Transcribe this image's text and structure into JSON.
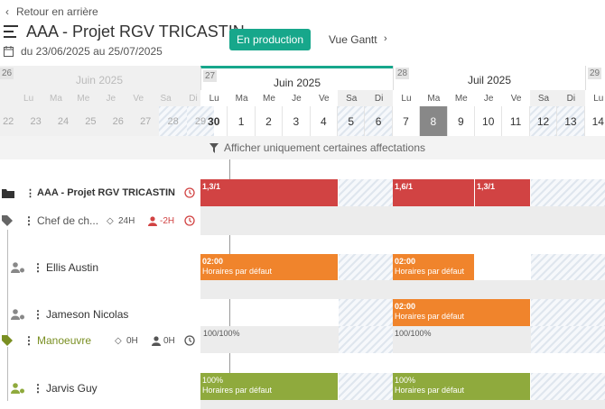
{
  "header": {
    "back_label": "Retour en arrière",
    "project_title": "AAA - Projet RGV TRICASTIN",
    "status_badge": "En production",
    "view_link": "Vue Gantt",
    "date_range": "du 23/06/2025 au 25/07/2025"
  },
  "timeline": {
    "weeks": [
      {
        "num": "26",
        "month": "Juin  2025",
        "faded": true
      },
      {
        "num": "27",
        "month": "Juin  2025",
        "faded": false
      },
      {
        "num": "28",
        "month": "Juil  2025",
        "faded": false
      },
      {
        "num": "29",
        "month": "",
        "faded": false
      }
    ],
    "day_labels": [
      "Lu",
      "Ma",
      "Me",
      "Je",
      "Ve",
      "Sa",
      "Di"
    ],
    "faded_days": [
      "22",
      "23",
      "24",
      "25",
      "26",
      "27",
      "28",
      "29"
    ],
    "days": [
      "30",
      "1",
      "2",
      "3",
      "4",
      "5",
      "6",
      "7",
      "8",
      "9",
      "10",
      "11",
      "12",
      "13",
      "14"
    ],
    "today": "8"
  },
  "filter_label": "Afficher uniquement certaines affectations",
  "rows": {
    "project": {
      "name": "AAA - Projet RGV TRICASTIN",
      "bar1": "1,3/1",
      "bar2": "1,6/1",
      "bar3": "1,3/1"
    },
    "chef": {
      "name": "Chef de ch...",
      "hours": "24H",
      "delta": "-2H"
    },
    "ellis": {
      "name": "Ellis Austin",
      "bar_time1": "02:00",
      "bar_sub1": "Horaires par défaut",
      "bar_time2": "02:00",
      "bar_sub2": "Horaires par défaut"
    },
    "jameson": {
      "name": "Jameson Nicolas",
      "bar_time": "02:00",
      "bar_sub": "Horaires par défaut"
    },
    "manoeuvre": {
      "name": "Manoeuvre",
      "hours": "0H",
      "people": "0H",
      "pct1": "100/100%",
      "pct2": "100/100%"
    },
    "jarvis": {
      "name": "Jarvis Guy",
      "bar_pct1": "100%",
      "bar_sub1": "Horaires par défaut",
      "bar_pct2": "100%",
      "bar_sub2": "Horaires par défaut"
    }
  },
  "colors": {
    "red": "#d14343",
    "orange": "#f0842c",
    "green": "#8faa3d",
    "teal": "#17a78b",
    "olive": "#7a8f22"
  }
}
